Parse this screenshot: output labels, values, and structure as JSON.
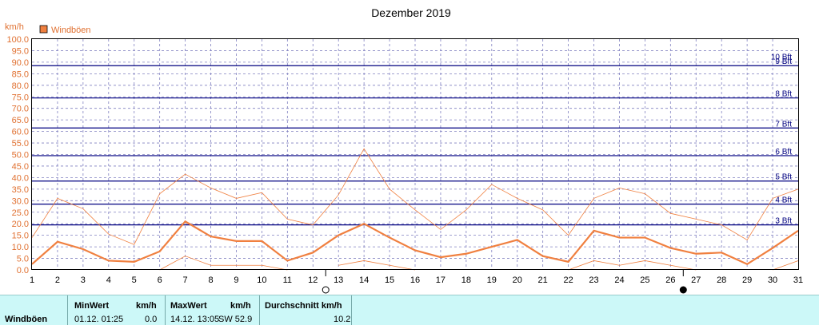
{
  "chart_data": {
    "type": "line",
    "title": "Dezember 2019",
    "ylabel": "km/h",
    "ylim": [
      0,
      100
    ],
    "yticks": [
      "0.0",
      "5.0",
      "10.0",
      "15.0",
      "20.0",
      "25.0",
      "30.0",
      "35.0",
      "40.0",
      "45.0",
      "50.0",
      "55.0",
      "60.0",
      "65.0",
      "70.0",
      "75.0",
      "80.0",
      "85.0",
      "90.0",
      "95.0",
      "100.0"
    ],
    "xticks": [
      "1",
      "2",
      "3",
      "4",
      "5",
      "6",
      "7",
      "8",
      "9",
      "10",
      "11",
      "12",
      "13",
      "14",
      "15",
      "16",
      "17",
      "18",
      "19",
      "20",
      "21",
      "22",
      "23",
      "24",
      "25",
      "26",
      "27",
      "28",
      "29",
      "30",
      "31"
    ],
    "legend": "Windböen",
    "beaufort": [
      {
        "label": "3 Bft",
        "value": 19.5
      },
      {
        "label": "4 Bft",
        "value": 28.5
      },
      {
        "label": "5 Bft",
        "value": 38.5
      },
      {
        "label": "6 Bft",
        "value": 49.5
      },
      {
        "label": "7 Bft",
        "value": 61.5
      },
      {
        "label": "8 Bft",
        "value": 74.5
      },
      {
        "label": "9 Bft",
        "value": 88.5
      },
      {
        "label": "10 Bft",
        "value": 102.5
      }
    ],
    "series": [
      {
        "name": "Windböen",
        "values": [
          2.5,
          12.2,
          9.0,
          4.0,
          3.5,
          8.0,
          21.0,
          14.5,
          12.5,
          12.5,
          4.0,
          7.5,
          15.0,
          20.0,
          14.0,
          8.5,
          5.5,
          7.0,
          10.0,
          13.0,
          6.0,
          3.5,
          17.0,
          14.0,
          14.0,
          9.5,
          7.0,
          7.5,
          2.5,
          9.5,
          17.0
        ]
      },
      {
        "values": [
          14.0,
          31.0,
          26.5,
          15.5,
          11.0,
          33.0,
          41.5,
          35.5,
          31.0,
          33.5,
          22.0,
          19.5,
          32.5,
          52.5,
          35.0,
          26.0,
          17.5,
          26.0,
          37.0,
          31.0,
          26.0,
          15.0,
          31.0,
          35.5,
          33.0,
          24.5,
          22.0,
          19.5,
          13.0,
          31.0,
          35.0
        ]
      },
      {
        "values": [
          null,
          null,
          null,
          null,
          null,
          0.0,
          6.0,
          2.0,
          2.0,
          2.0,
          0.0,
          null,
          2.0,
          4.0,
          2.0,
          0.0,
          null,
          null,
          null,
          null,
          null,
          0.0,
          4.0,
          2.0,
          4.0,
          2.0,
          0.0,
          null,
          null,
          0.0,
          4.0
        ]
      }
    ],
    "colors": {
      "thick": "#f08040",
      "thin": "#f08040",
      "bft": "#000080",
      "grid": "#8080c0",
      "axis_text": "#e07030",
      "bft_text": "#000080"
    },
    "markers": [
      {
        "day": 12.5,
        "symbol": "first-quarter-moon-icon"
      },
      {
        "day": 26.5,
        "symbol": "new-moon-icon"
      }
    ]
  },
  "summary": {
    "row_label": "Windböen",
    "min_header": "MinWert",
    "min_unit": "km/h",
    "min_date": "01.12.  01:25",
    "min_value": "0.0",
    "max_header": "MaxWert",
    "max_unit": "km/h",
    "max_date": "14.12.  13:05",
    "max_dir_value": "SW 52.9",
    "avg_header": "Durchschnitt km/h",
    "avg_value": "10.2"
  }
}
